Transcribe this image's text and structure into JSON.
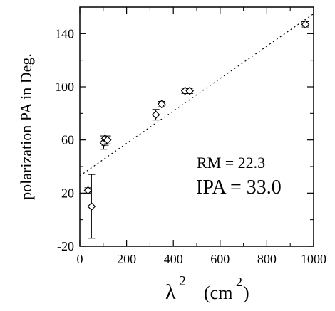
{
  "chart_data": {
    "type": "scatter",
    "xlabel": "λ",
    "xlabel_sup": "2",
    "xunit": "(cm",
    "xunit_sup": "2",
    "xunit_close": ")",
    "ylabel": "polarization PA in Deg.",
    "xlim": [
      0,
      1000
    ],
    "ylim": [
      -20,
      160
    ],
    "x_ticks": [
      0,
      200,
      400,
      600,
      800,
      1000
    ],
    "y_ticks": [
      -20,
      20,
      60,
      100,
      140
    ],
    "x_tick_labels": [
      "0",
      "200",
      "400",
      "600",
      "800",
      "1000"
    ],
    "y_tick_labels": [
      "-20",
      "20",
      "60",
      "100",
      "140"
    ],
    "points": [
      {
        "x": 35,
        "y": 22,
        "yerr": 2
      },
      {
        "x": 50,
        "y": 10,
        "yerr": 24
      },
      {
        "x": 102,
        "y": 58,
        "yerr": 5
      },
      {
        "x": 108,
        "y": 61,
        "yerr": 5
      },
      {
        "x": 118,
        "y": 60,
        "yerr": 3
      },
      {
        "x": 325,
        "y": 79,
        "yerr": 4
      },
      {
        "x": 350,
        "y": 87,
        "yerr": 2
      },
      {
        "x": 450,
        "y": 97,
        "yerr": 2
      },
      {
        "x": 470,
        "y": 97,
        "yerr": 2
      },
      {
        "x": 965,
        "y": 147,
        "yerr": 2
      }
    ],
    "fit_line": {
      "x": [
        0,
        1000
      ],
      "y": [
        33.0,
        155.0
      ],
      "style": "dotted"
    },
    "annotations": [
      {
        "text": "RM = 22.3"
      },
      {
        "text": "IPA = 33.0"
      }
    ],
    "grid": false,
    "legend": "none"
  }
}
